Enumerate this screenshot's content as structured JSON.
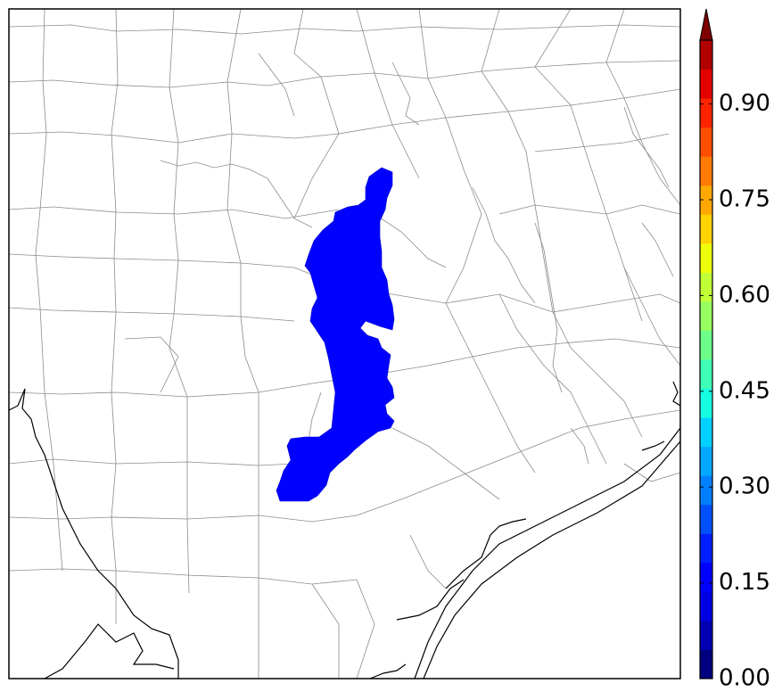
{
  "map": {
    "region": "Central / Southeast Texas county map",
    "highlight_value": 0.1,
    "highlight_color": "#0000ff",
    "county_line_color": "#8c8c8c",
    "coast_line_color": "#000000"
  },
  "colorbar": {
    "vmin": 0.0,
    "vmax": 1.0,
    "extend": "max",
    "ticks": [
      {
        "value": 0.0,
        "label": "0.00"
      },
      {
        "value": 0.15,
        "label": "0.15"
      },
      {
        "value": 0.3,
        "label": "0.30"
      },
      {
        "value": 0.45,
        "label": "0.45"
      },
      {
        "value": 0.6,
        "label": "0.60"
      },
      {
        "value": 0.75,
        "label": "0.75"
      },
      {
        "value": 0.9,
        "label": "0.90"
      }
    ],
    "colors": [
      "#00007f",
      "#0000b2",
      "#0000e5",
      "#0000ff",
      "#0020ff",
      "#0050ff",
      "#0080ff",
      "#00a8ff",
      "#00d0ff",
      "#16ffe1",
      "#40ffb7",
      "#6dff8a",
      "#97ff60",
      "#c1ff36",
      "#edff0a",
      "#ffd200",
      "#ffa800",
      "#ff7a00",
      "#ff4e00",
      "#ff2300",
      "#e50000",
      "#b20000",
      "#7f0000"
    ]
  }
}
